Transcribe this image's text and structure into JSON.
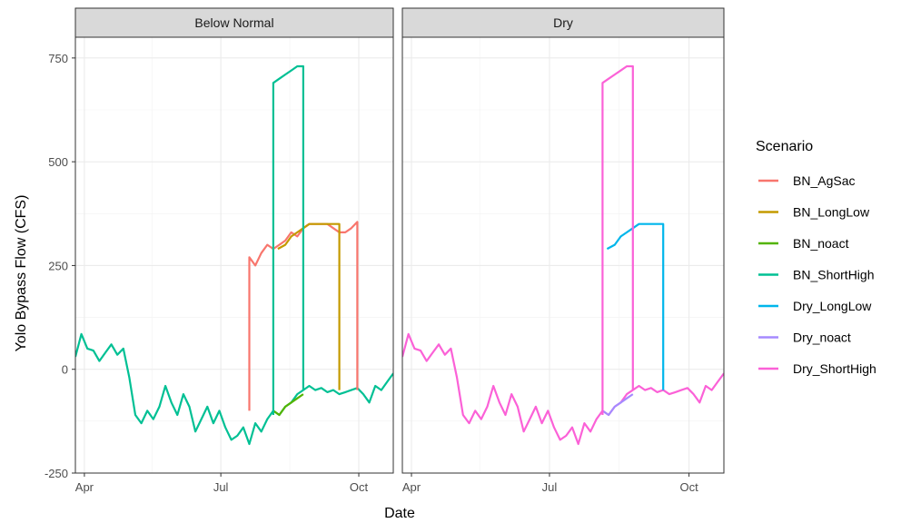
{
  "chart_data": {
    "type": "line",
    "xlabel": "Date",
    "ylabel": "Yolo Bypass Flow (CFS)",
    "xlim": [
      "2016-03-26",
      "2016-10-24"
    ],
    "ylim": [
      -250,
      800
    ],
    "x_ticks": [
      {
        "date": "2016-04-01",
        "label": "Apr"
      },
      {
        "date": "2016-07-01",
        "label": "Jul"
      },
      {
        "date": "2016-10-01",
        "label": "Oct"
      }
    ],
    "y_ticks": [
      -250,
      0,
      250,
      500,
      750
    ],
    "grid": true,
    "legend": {
      "title": "Scenario",
      "position": "right"
    },
    "colors": {
      "BN_AgSac": "#F8766D",
      "BN_LongLow": "#C49A00",
      "BN_noact": "#53B400",
      "BN_ShortHigh": "#00C094",
      "Dry_LongLow": "#00B6EB",
      "Dry_noact": "#A58AFF",
      "Dry_ShortHigh": "#FB61D7"
    },
    "legend_entries": [
      "BN_AgSac",
      "BN_LongLow",
      "BN_noact",
      "BN_ShortHigh",
      "Dry_LongLow",
      "Dry_noact",
      "Dry_ShortHigh"
    ],
    "base_flow": {
      "x": [
        "2016-03-26",
        "2016-03-30",
        "2016-04-03",
        "2016-04-07",
        "2016-04-11",
        "2016-04-15",
        "2016-04-19",
        "2016-04-23",
        "2016-04-27",
        "2016-05-01",
        "2016-05-05",
        "2016-05-09",
        "2016-05-13",
        "2016-05-17",
        "2016-05-21",
        "2016-05-25",
        "2016-05-29",
        "2016-06-02",
        "2016-06-06",
        "2016-06-10",
        "2016-06-14",
        "2016-06-18",
        "2016-06-22",
        "2016-06-26",
        "2016-06-30",
        "2016-07-04",
        "2016-07-08",
        "2016-07-12",
        "2016-07-16",
        "2016-07-20",
        "2016-07-24",
        "2016-07-28",
        "2016-08-01",
        "2016-08-05",
        "2016-08-09",
        "2016-08-13",
        "2016-08-17",
        "2016-08-21",
        "2016-08-25",
        "2016-08-29",
        "2016-09-02",
        "2016-09-06",
        "2016-09-10",
        "2016-09-14",
        "2016-09-18",
        "2016-09-22",
        "2016-09-26",
        "2016-09-30",
        "2016-10-04",
        "2016-10-08",
        "2016-10-12",
        "2016-10-16",
        "2016-10-20",
        "2016-10-24"
      ],
      "y": [
        30,
        85,
        50,
        45,
        20,
        40,
        60,
        35,
        50,
        -20,
        -110,
        -130,
        -100,
        -120,
        -90,
        -40,
        -80,
        -110,
        -60,
        -90,
        -150,
        -120,
        -90,
        -130,
        -100,
        -140,
        -170,
        -160,
        -140,
        -180,
        -130,
        -150,
        -120,
        -100,
        -110,
        -90,
        -80,
        -60,
        -50,
        -40,
        -50,
        -45,
        -55,
        -50,
        -60,
        -55,
        -50,
        -45,
        -60,
        -80,
        -40,
        -50,
        -30,
        -10
      ]
    },
    "panels": [
      {
        "strip": "Below Normal",
        "series": [
          {
            "name": "BN_AgSac",
            "x": [
              "2016-07-20",
              "2016-07-20",
              "2016-07-24",
              "2016-07-28",
              "2016-08-01",
              "2016-08-05",
              "2016-08-09",
              "2016-08-13",
              "2016-08-17",
              "2016-08-21",
              "2016-08-25",
              "2016-08-29",
              "2016-09-02",
              "2016-09-06",
              "2016-09-10",
              "2016-09-14",
              "2016-09-18",
              "2016-09-22",
              "2016-09-26",
              "2016-09-30",
              "2016-09-30"
            ],
            "y": [
              -100,
              270,
              250,
              280,
              300,
              290,
              300,
              310,
              330,
              320,
              340,
              350,
              350,
              350,
              350,
              340,
              330,
              330,
              340,
              355,
              -50
            ]
          },
          {
            "name": "BN_LongLow",
            "x": [
              "2016-08-08",
              "2016-08-13",
              "2016-08-17",
              "2016-08-21",
              "2016-08-25",
              "2016-08-29",
              "2016-09-02",
              "2016-09-06",
              "2016-09-10",
              "2016-09-14",
              "2016-09-18",
              "2016-09-18"
            ],
            "y": [
              290,
              300,
              320,
              330,
              340,
              350,
              350,
              350,
              350,
              350,
              350,
              -50
            ]
          },
          {
            "name": "BN_noact",
            "x": [
              "2016-08-05",
              "2016-08-09",
              "2016-08-13",
              "2016-08-17",
              "2016-08-21",
              "2016-08-25"
            ],
            "y": [
              -100,
              -110,
              -90,
              -80,
              -70,
              -60
            ]
          },
          {
            "name": "BN_ShortHigh",
            "x": [
              "2016-08-05",
              "2016-08-05",
              "2016-08-09",
              "2016-08-13",
              "2016-08-17",
              "2016-08-21",
              "2016-08-25",
              "2016-08-25"
            ],
            "y": [
              -110,
              690,
              700,
              710,
              720,
              730,
              730,
              -50
            ]
          }
        ]
      },
      {
        "strip": "Dry",
        "series": [
          {
            "name": "Dry_LongLow",
            "x": [
              "2016-08-08",
              "2016-08-13",
              "2016-08-17",
              "2016-08-21",
              "2016-08-25",
              "2016-08-29",
              "2016-09-02",
              "2016-09-06",
              "2016-09-10",
              "2016-09-14",
              "2016-09-14"
            ],
            "y": [
              290,
              300,
              320,
              330,
              340,
              350,
              350,
              350,
              350,
              350,
              -50
            ]
          },
          {
            "name": "Dry_noact",
            "x": [
              "2016-08-05",
              "2016-08-09",
              "2016-08-13",
              "2016-08-17",
              "2016-08-21",
              "2016-08-25"
            ],
            "y": [
              -100,
              -110,
              -90,
              -80,
              -70,
              -60
            ]
          },
          {
            "name": "Dry_ShortHigh",
            "x": [
              "2016-08-05",
              "2016-08-05",
              "2016-08-09",
              "2016-08-13",
              "2016-08-17",
              "2016-08-21",
              "2016-08-25",
              "2016-08-25"
            ],
            "y": [
              -110,
              690,
              700,
              710,
              720,
              730,
              730,
              -50
            ]
          }
        ],
        "base_color": "Dry_ShortHigh"
      }
    ],
    "panel_base_colors": [
      "BN_ShortHigh",
      "Dry_ShortHigh"
    ]
  }
}
